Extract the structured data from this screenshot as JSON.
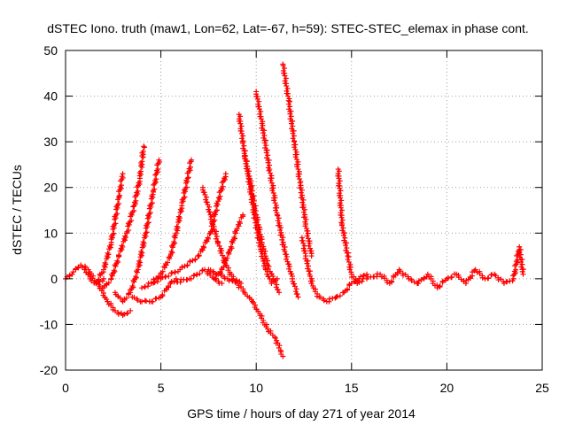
{
  "chart_data": {
    "type": "scatter",
    "title": "dSTEC Iono. truth (maw1, Lon=62, Lat=-67, h=59): STEC-STEC_elemax in phase cont.",
    "xlabel": "GPS time / hours of day 271 of year 2014",
    "ylabel": "dSTEC  / TECUs",
    "xlim": [
      0,
      25
    ],
    "ylim": [
      -20,
      50
    ],
    "xticks": [
      0,
      5,
      10,
      15,
      20,
      25
    ],
    "yticks": [
      -20,
      -10,
      0,
      10,
      20,
      30,
      40,
      50
    ],
    "xtick_labels": [
      "0",
      "5",
      "10",
      "15",
      "20",
      "25"
    ],
    "ytick_labels": [
      "-20",
      "-10",
      "0",
      "10",
      "20",
      "30",
      "40",
      "50"
    ],
    "grid": true,
    "marker": "plus",
    "color": "#ff0000",
    "series": [
      {
        "x": [
          0.0,
          0.4,
          0.8,
          1.2,
          1.6,
          2.0
        ],
        "y": [
          0.0,
          1.5,
          3.0,
          2.0,
          -1.0,
          0.0
        ]
      },
      {
        "x": [
          1.0,
          1.3,
          1.6,
          2.0,
          2.4,
          2.8,
          3.0
        ],
        "y": [
          2.0,
          0.0,
          -1.0,
          2.0,
          8.0,
          18.0,
          23.0
        ]
      },
      {
        "x": [
          1.6,
          2.0,
          2.4,
          2.8,
          3.2,
          3.6,
          3.9,
          4.1
        ],
        "y": [
          -1.0,
          -2.0,
          0.0,
          5.0,
          10.0,
          16.0,
          22.0,
          29.0
        ]
      },
      {
        "x": [
          1.8,
          2.2,
          2.6,
          3.0,
          3.4
        ],
        "y": [
          -2.0,
          -5.0,
          -7.0,
          -8.0,
          -7.0
        ]
      },
      {
        "x": [
          2.6,
          3.0,
          3.4,
          3.8,
          4.2,
          4.6,
          4.9
        ],
        "y": [
          -3.0,
          -5.0,
          -3.0,
          2.0,
          10.0,
          19.0,
          26.0
        ]
      },
      {
        "x": [
          3.5,
          4.0,
          4.5,
          5.0,
          5.5,
          5.8
        ],
        "y": [
          -4.0,
          -5.0,
          -5.0,
          -4.0,
          -1.0,
          0.0
        ]
      },
      {
        "x": [
          4.5,
          5.0,
          5.5,
          5.8,
          6.1,
          6.4,
          6.6
        ],
        "y": [
          -1.0,
          1.0,
          5.0,
          10.0,
          16.0,
          22.0,
          26.0
        ]
      },
      {
        "x": [
          4.0,
          5.0,
          6.0,
          7.0,
          7.6,
          8.0,
          8.4
        ],
        "y": [
          -2.0,
          0.0,
          2.0,
          5.0,
          10.0,
          17.0,
          23.0
        ]
      },
      {
        "x": [
          5.5,
          6.5,
          7.3,
          7.8,
          8.2
        ],
        "y": [
          -1.0,
          0.0,
          2.0,
          0.0,
          -1.0
        ]
      },
      {
        "x": [
          7.2,
          7.6,
          8.0,
          8.4,
          8.8,
          9.2
        ],
        "y": [
          20.0,
          14.0,
          8.0,
          3.0,
          0.0,
          -1.0
        ]
      },
      {
        "x": [
          7.5,
          8.0,
          8.5,
          9.0,
          9.4,
          9.8,
          10.2,
          10.6,
          11.0,
          11.3,
          11.4
        ],
        "y": [
          2.0,
          1.0,
          0.0,
          -1.0,
          -3.0,
          -5.0,
          -8.0,
          -11.0,
          -13.0,
          -16.0,
          -17.0
        ]
      },
      {
        "x": [
          7.8,
          8.2,
          8.6,
          9.0,
          9.3
        ],
        "y": [
          0.0,
          2.0,
          6.0,
          11.0,
          14.0
        ]
      },
      {
        "x": [
          9.1,
          9.3,
          9.6,
          9.9,
          10.2,
          10.5,
          10.8,
          11.1
        ],
        "y": [
          36.0,
          30.0,
          22.0,
          14.0,
          7.0,
          2.0,
          -1.0,
          0.0
        ]
      },
      {
        "x": [
          9.4,
          9.7,
          10.0,
          10.3,
          10.6,
          10.9,
          11.2
        ],
        "y": [
          27.0,
          21.0,
          14.0,
          8.0,
          3.0,
          0.0,
          -3.0
        ]
      },
      {
        "x": [
          10.0,
          10.3,
          10.7,
          11.1,
          11.5,
          11.9,
          12.2
        ],
        "y": [
          41.0,
          34.0,
          24.0,
          14.0,
          6.0,
          0.0,
          -4.0
        ]
      },
      {
        "x": [
          11.4,
          11.7,
          12.0,
          12.3,
          12.6,
          12.9
        ],
        "y": [
          47.0,
          39.0,
          30.0,
          21.0,
          12.0,
          5.0
        ]
      },
      {
        "x": [
          12.4,
          12.6,
          12.8,
          13.0,
          13.3,
          13.7,
          14.2,
          14.6,
          15.0,
          15.4,
          15.8
        ],
        "y": [
          9.0,
          5.0,
          1.0,
          -2.0,
          -4.0,
          -5.0,
          -4.0,
          -3.0,
          -1.0,
          0.0,
          1.0
        ]
      },
      {
        "x": [
          14.3,
          14.5,
          14.8,
          15.0,
          15.3,
          15.6
        ],
        "y": [
          24.0,
          12.0,
          5.0,
          1.0,
          -1.0,
          0.0
        ]
      },
      {
        "x": [
          15.8,
          16.5,
          17.0,
          17.5,
          18.0,
          18.5,
          19.0,
          19.5,
          20.0,
          20.5,
          21.0,
          21.5,
          22.0,
          22.5,
          23.0,
          23.5,
          23.8,
          24.0
        ],
        "y": [
          0.0,
          1.0,
          -1.0,
          2.0,
          0.0,
          -1.0,
          1.0,
          -2.0,
          0.0,
          1.0,
          -1.0,
          2.0,
          0.0,
          1.0,
          -1.0,
          0.0,
          7.0,
          1.0
        ]
      }
    ]
  }
}
